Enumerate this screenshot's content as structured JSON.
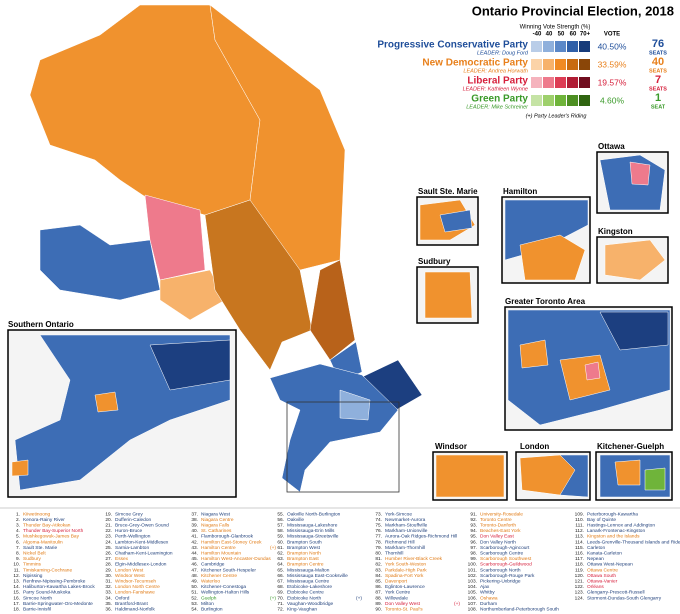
{
  "title": "Ontario Provincial Election, 2018",
  "legend": {
    "strength_title": "Winning Vote Strength (%)",
    "strength_labels": [
      "-40",
      "40",
      "50",
      "60",
      "70+"
    ],
    "vote_header": "VOTE",
    "parties": [
      {
        "name": "Progressive Conservative Party",
        "leader": "LEADER: Doug Ford",
        "vote": "40.50%",
        "seats": "76",
        "seats_label": "SEATS",
        "color": "#1f4e9a",
        "ramp": [
          "#b9cde8",
          "#8fb0dc",
          "#5b88c8",
          "#2f5fa8",
          "#163b7a"
        ]
      },
      {
        "name": "New Democratic Party",
        "leader": "LEADER: Andrea Horwath",
        "vote": "33.59%",
        "seats": "40",
        "seats_label": "SEATS",
        "color": "#e8801c",
        "ramp": [
          "#fbd3a8",
          "#f7b26b",
          "#f08a24",
          "#c86a10",
          "#8a4608"
        ]
      },
      {
        "name": "Liberal Party",
        "leader": "LEADER: Kathleen Wynne",
        "vote": "19.57%",
        "seats": "7",
        "seats_label": "SEATS",
        "color": "#d6203c",
        "ramp": [
          "#f5b3bd",
          "#ee7a8c",
          "#dd3c54",
          "#b01c34",
          "#700d1f"
        ]
      },
      {
        "name": "Green Party",
        "leader": "LEADER: Mike Schreiner",
        "vote": "4.60%",
        "seats": "1",
        "seats_label": "SEAT",
        "color": "#3b9a2a",
        "ramp": [
          "#c5e3a5",
          "#9ed06c",
          "#6fb43a",
          "#4d8f22",
          "#2f6410"
        ]
      }
    ],
    "footnote": "(+)  Party Leader's Riding"
  },
  "insets": [
    "Ottawa",
    "Sault Ste. Marie",
    "Hamilton",
    "Kingston",
    "Sudbury",
    "Greater Toronto Area",
    "Southern Ontario",
    "Windsor",
    "London",
    "Kitchener-Guelph"
  ],
  "ridings": [
    {
      "n": "1.",
      "name": "Kiiwetinoong",
      "color": "#e07a14"
    },
    {
      "n": "2.",
      "name": "Kenora-Rainy River",
      "color": "#1f3f7a"
    },
    {
      "n": "3.",
      "name": "Thunder Bay-Atikokan",
      "color": "#e07a14"
    },
    {
      "n": "4.",
      "name": "Thunder Bay-Superior North",
      "color": "#d6203c"
    },
    {
      "n": "5.",
      "name": "Mushkegowuk-James Bay",
      "color": "#e07a14"
    },
    {
      "n": "6.",
      "name": "Algoma-Manitoulin",
      "color": "#e07a14"
    },
    {
      "n": "7.",
      "name": "Sault Ste. Marie",
      "color": "#1f3f7a"
    },
    {
      "n": "8.",
      "name": "Nickel Belt",
      "color": "#e07a14"
    },
    {
      "n": "9.",
      "name": "Sudbury",
      "color": "#e07a14"
    },
    {
      "n": "10.",
      "name": "Timmins",
      "color": "#e07a14"
    },
    {
      "n": "11.",
      "name": "Timiskaming-Cochrane",
      "color": "#e07a14"
    },
    {
      "n": "12.",
      "name": "Nipissing",
      "color": "#1f3f7a"
    },
    {
      "n": "13.",
      "name": "Renfrew-Nipissing-Pembroke",
      "color": "#1f3f7a"
    },
    {
      "n": "14.",
      "name": "Haliburton-Kawartha Lakes-Brock",
      "color": "#1f3f7a"
    },
    {
      "n": "15.",
      "name": "Parry Sound-Muskoka",
      "color": "#1f3f7a"
    },
    {
      "n": "16.",
      "name": "Simcoe North",
      "color": "#1f3f7a"
    },
    {
      "n": "17.",
      "name": "Barrie-Springwater-Oro-Medonte",
      "color": "#1f3f7a"
    },
    {
      "n": "18.",
      "name": "Barrie-Innisfil",
      "color": "#1f3f7a"
    },
    {
      "n": "19.",
      "name": "Simcoe Grey",
      "color": "#1f3f7a"
    },
    {
      "n": "20.",
      "name": "Dufferin-Caledon",
      "color": "#1f3f7a"
    },
    {
      "n": "21.",
      "name": "Bruce-Grey-Owen Sound",
      "color": "#1f3f7a"
    },
    {
      "n": "22.",
      "name": "Huron-Bruce",
      "color": "#1f3f7a"
    },
    {
      "n": "23.",
      "name": "Perth-Wellington",
      "color": "#1f3f7a"
    },
    {
      "n": "24.",
      "name": "Lambton-Kent-Middlesex",
      "color": "#1f3f7a"
    },
    {
      "n": "25.",
      "name": "Sarnia-Lambton",
      "color": "#1f3f7a"
    },
    {
      "n": "26.",
      "name": "Chatham-Kent-Leamington",
      "color": "#1f3f7a"
    },
    {
      "n": "27.",
      "name": "Essex",
      "color": "#e07a14"
    },
    {
      "n": "28.",
      "name": "Elgin-Middlesex-London",
      "color": "#1f3f7a"
    },
    {
      "n": "29.",
      "name": "London West",
      "color": "#e07a14"
    },
    {
      "n": "30.",
      "name": "Windsor West",
      "color": "#e07a14"
    },
    {
      "n": "31.",
      "name": "Windsor-Tecumseh",
      "color": "#e07a14"
    },
    {
      "n": "32.",
      "name": "London North Centre",
      "color": "#e07a14"
    },
    {
      "n": "33.",
      "name": "London-Fanshawe",
      "color": "#e07a14"
    },
    {
      "n": "34.",
      "name": "Oxford",
      "color": "#1f3f7a"
    },
    {
      "n": "35.",
      "name": "Brantford-Brant",
      "color": "#1f3f7a"
    },
    {
      "n": "36.",
      "name": "Haldimand-Norfolk",
      "color": "#1f3f7a"
    },
    {
      "n": "37.",
      "name": "Niagara West",
      "color": "#1f3f7a"
    },
    {
      "n": "38.",
      "name": "Niagara Centre",
      "color": "#e07a14"
    },
    {
      "n": "39.",
      "name": "Niagara Falls",
      "color": "#e07a14"
    },
    {
      "n": "40.",
      "name": "St. Catharines",
      "color": "#e07a14"
    },
    {
      "n": "41.",
      "name": "Flamborough-Glanbrook",
      "color": "#1f3f7a"
    },
    {
      "n": "42.",
      "name": "Hamilton East-Stoney Creek",
      "color": "#e07a14"
    },
    {
      "n": "43.",
      "name": "Hamilton Centre",
      "color": "#e07a14",
      "mark": "(+)"
    },
    {
      "n": "44.",
      "name": "Hamilton Mountain",
      "color": "#e07a14"
    },
    {
      "n": "45.",
      "name": "Hamilton West-Ancaster-Dundas",
      "color": "#e07a14"
    },
    {
      "n": "46.",
      "name": "Cambridge",
      "color": "#1f3f7a"
    },
    {
      "n": "47.",
      "name": "Kitchener South-Hespeler",
      "color": "#1f3f7a"
    },
    {
      "n": "48.",
      "name": "Kitchener Centre",
      "color": "#e07a14"
    },
    {
      "n": "49.",
      "name": "Waterloo",
      "color": "#e07a14"
    },
    {
      "n": "50.",
      "name": "Kitchener-Conestoga",
      "color": "#1f3f7a"
    },
    {
      "n": "51.",
      "name": "Wellington-Halton Hills",
      "color": "#1f3f7a"
    },
    {
      "n": "52.",
      "name": "Guelph",
      "color": "#3b9a2a",
      "mark": "(+)"
    },
    {
      "n": "53.",
      "name": "Milton",
      "color": "#1f3f7a"
    },
    {
      "n": "54.",
      "name": "Burlington",
      "color": "#1f3f7a"
    },
    {
      "n": "55.",
      "name": "Oakville North-Burlington",
      "color": "#1f3f7a"
    },
    {
      "n": "56.",
      "name": "Oakville",
      "color": "#1f3f7a"
    },
    {
      "n": "57.",
      "name": "Mississauga-Lakeshore",
      "color": "#1f3f7a"
    },
    {
      "n": "58.",
      "name": "Mississauga-Erin Mills",
      "color": "#1f3f7a"
    },
    {
      "n": "59.",
      "name": "Mississauga-Streetsville",
      "color": "#1f3f7a"
    },
    {
      "n": "60.",
      "name": "Brampton South",
      "color": "#1f3f7a"
    },
    {
      "n": "61.",
      "name": "Brampton West",
      "color": "#1f3f7a"
    },
    {
      "n": "62.",
      "name": "Brampton North",
      "color": "#e07a14"
    },
    {
      "n": "63.",
      "name": "Brampton East",
      "color": "#e07a14"
    },
    {
      "n": "64.",
      "name": "Brampton Centre",
      "color": "#e07a14"
    },
    {
      "n": "65.",
      "name": "Mississauga-Malton",
      "color": "#1f3f7a"
    },
    {
      "n": "66.",
      "name": "Mississauga East-Cooksville",
      "color": "#1f3f7a"
    },
    {
      "n": "67.",
      "name": "Mississauga Centre",
      "color": "#1f3f7a"
    },
    {
      "n": "68.",
      "name": "Etobicoke-Lakeshore",
      "color": "#1f3f7a"
    },
    {
      "n": "69.",
      "name": "Etobicoke Centre",
      "color": "#1f3f7a"
    },
    {
      "n": "70.",
      "name": "Etobicoke North",
      "color": "#1f3f7a",
      "mark": "(+)"
    },
    {
      "n": "71.",
      "name": "Vaughan-Woodbridge",
      "color": "#1f3f7a"
    },
    {
      "n": "72.",
      "name": "King-Vaughan",
      "color": "#1f3f7a"
    },
    {
      "n": "73.",
      "name": "York-Simcoe",
      "color": "#1f3f7a"
    },
    {
      "n": "74.",
      "name": "Newmarket-Aurora",
      "color": "#1f3f7a"
    },
    {
      "n": "75.",
      "name": "Markham-Stouffville",
      "color": "#1f3f7a"
    },
    {
      "n": "76.",
      "name": "Markham-Unionville",
      "color": "#1f3f7a"
    },
    {
      "n": "77.",
      "name": "Aurora-Oak Ridges-Richmond Hill",
      "color": "#1f3f7a"
    },
    {
      "n": "78.",
      "name": "Richmond Hill",
      "color": "#1f3f7a"
    },
    {
      "n": "79.",
      "name": "Markham-Thornhill",
      "color": "#1f3f7a"
    },
    {
      "n": "80.",
      "name": "Thornhill",
      "color": "#1f3f7a"
    },
    {
      "n": "81.",
      "name": "Humber River-Black Creek",
      "color": "#e07a14"
    },
    {
      "n": "82.",
      "name": "York South-Weston",
      "color": "#e07a14"
    },
    {
      "n": "83.",
      "name": "Parkdale-High Park",
      "color": "#e07a14"
    },
    {
      "n": "84.",
      "name": "Spadina-Fort York",
      "color": "#e07a14"
    },
    {
      "n": "85.",
      "name": "Davenport",
      "color": "#e07a14"
    },
    {
      "n": "86.",
      "name": "Eglinton-Lawrence",
      "color": "#1f3f7a"
    },
    {
      "n": "87.",
      "name": "York Centre",
      "color": "#1f3f7a"
    },
    {
      "n": "88.",
      "name": "Willowdale",
      "color": "#1f3f7a"
    },
    {
      "n": "89.",
      "name": "Don Valley West",
      "color": "#d6203c",
      "mark": "(+)"
    },
    {
      "n": "90.",
      "name": "Toronto-St. Paul's",
      "color": "#e07a14"
    },
    {
      "n": "91.",
      "name": "University-Rosedale",
      "color": "#e07a14"
    },
    {
      "n": "92.",
      "name": "Toronto Centre",
      "color": "#e07a14"
    },
    {
      "n": "93.",
      "name": "Toronto-Danforth",
      "color": "#e07a14"
    },
    {
      "n": "94.",
      "name": "Beaches-East York",
      "color": "#e07a14"
    },
    {
      "n": "95.",
      "name": "Don Valley East",
      "color": "#d6203c"
    },
    {
      "n": "96.",
      "name": "Don Valley North",
      "color": "#1f3f7a"
    },
    {
      "n": "97.",
      "name": "Scarborough-Agincourt",
      "color": "#1f3f7a"
    },
    {
      "n": "98.",
      "name": "Scarborough Centre",
      "color": "#1f3f7a"
    },
    {
      "n": "99.",
      "name": "Scarborough Southwest",
      "color": "#e07a14"
    },
    {
      "n": "100.",
      "name": "Scarborough-Guildwood",
      "color": "#d6203c"
    },
    {
      "n": "101.",
      "name": "Scarborough North",
      "color": "#1f3f7a"
    },
    {
      "n": "102.",
      "name": "Scarborough-Rouge Park",
      "color": "#1f3f7a"
    },
    {
      "n": "103.",
      "name": "Pickering-Uxbridge",
      "color": "#1f3f7a"
    },
    {
      "n": "104.",
      "name": "Ajax",
      "color": "#1f3f7a"
    },
    {
      "n": "105.",
      "name": "Whitby",
      "color": "#1f3f7a"
    },
    {
      "n": "106.",
      "name": "Oshawa",
      "color": "#e07a14"
    },
    {
      "n": "107.",
      "name": "Durham",
      "color": "#1f3f7a"
    },
    {
      "n": "108.",
      "name": "Northumberland-Peterborough South",
      "color": "#1f3f7a"
    },
    {
      "n": "109.",
      "name": "Peterborough-Kawartha",
      "color": "#1f3f7a"
    },
    {
      "n": "110.",
      "name": "Bay of Quinte",
      "color": "#1f3f7a"
    },
    {
      "n": "111.",
      "name": "Hastings-Lennox and Addington",
      "color": "#1f3f7a"
    },
    {
      "n": "112.",
      "name": "Lanark-Frontenac-Kingston",
      "color": "#1f3f7a"
    },
    {
      "n": "113.",
      "name": "Kingston and the Islands",
      "color": "#e07a14"
    },
    {
      "n": "114.",
      "name": "Leeds-Grenville-Thousand Islands and Rideau Lakes",
      "color": "#1f3f7a"
    },
    {
      "n": "115.",
      "name": "Carleton",
      "color": "#1f3f7a"
    },
    {
      "n": "116.",
      "name": "Kanata-Carleton",
      "color": "#1f3f7a"
    },
    {
      "n": "117.",
      "name": "Nepean",
      "color": "#1f3f7a"
    },
    {
      "n": "118.",
      "name": "Ottawa West-Nepean",
      "color": "#1f3f7a"
    },
    {
      "n": "119.",
      "name": "Ottawa Centre",
      "color": "#e07a14"
    },
    {
      "n": "120.",
      "name": "Ottawa South",
      "color": "#d6203c"
    },
    {
      "n": "121.",
      "name": "Ottawa-Vanier",
      "color": "#d6203c"
    },
    {
      "n": "122.",
      "name": "Orléans",
      "color": "#d6203c"
    },
    {
      "n": "123.",
      "name": "Glengarry-Prescott-Russell",
      "color": "#1f3f7a"
    },
    {
      "n": "124.",
      "name": "Stormont-Dundas-South Glengarry",
      "color": "#1f3f7a"
    }
  ]
}
